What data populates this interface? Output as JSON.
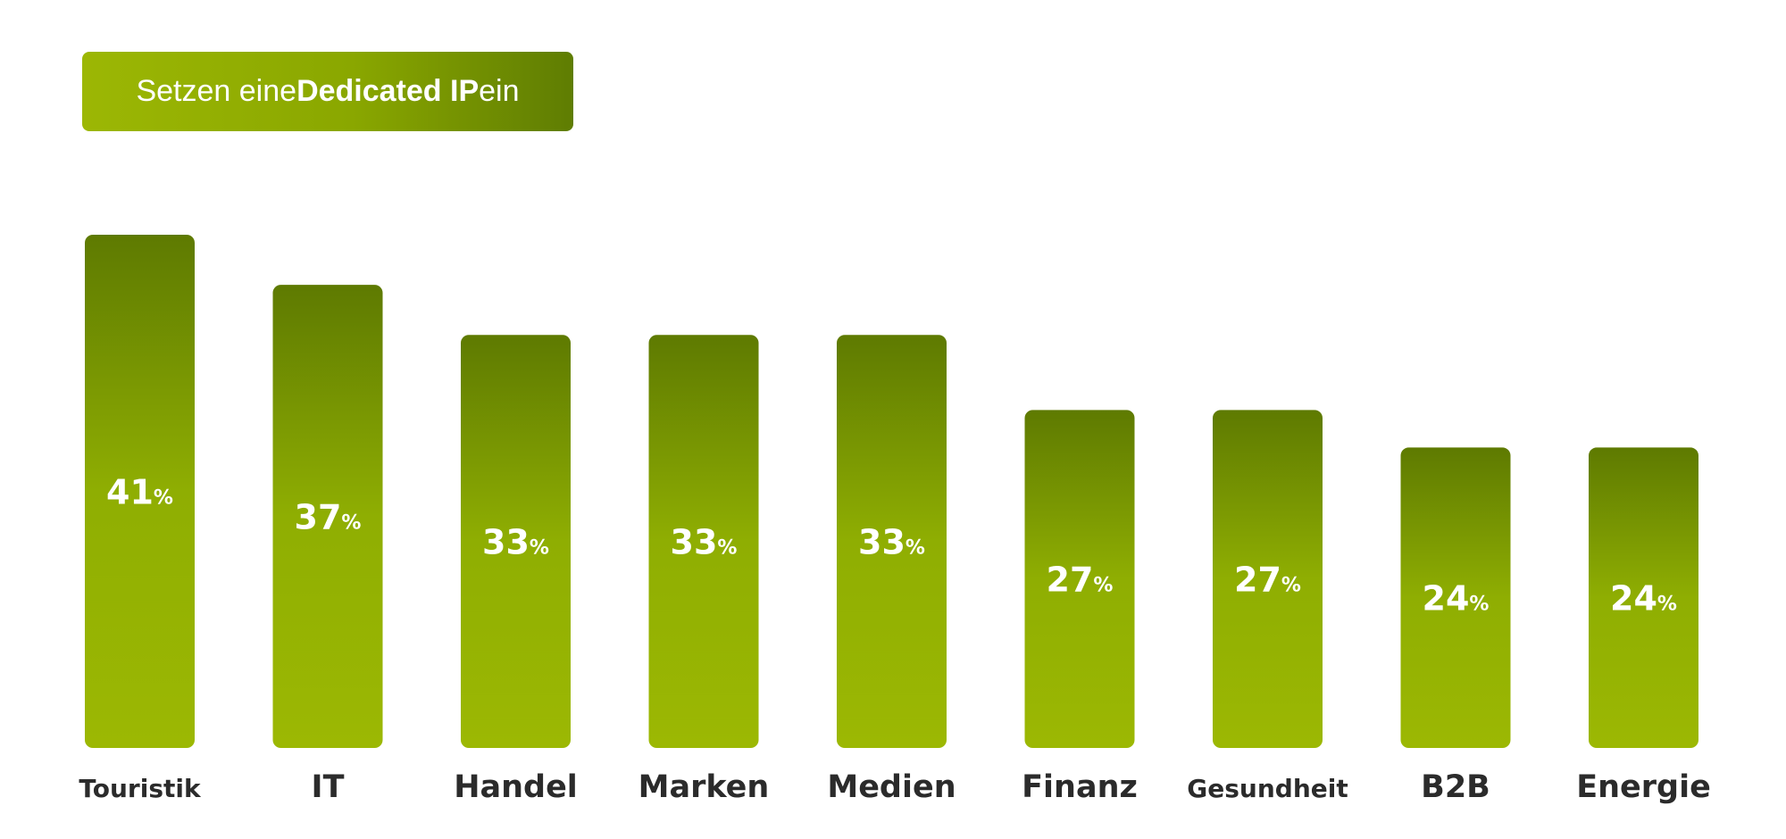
{
  "title": {
    "part1": "Setzen eine ",
    "part2": "Dedicated IP",
    "part3": " ein"
  },
  "colors": {
    "bar_top": "#5e7a01",
    "bar_bottom": "#9cb803",
    "title_left": "#9cb704",
    "title_right": "#5f7d02",
    "label_text": "#ffffff",
    "category_text": "#2b2b2b"
  },
  "chart_data": {
    "type": "bar",
    "title": "Setzen eine Dedicated IP ein",
    "categories": [
      "Touristik",
      "IT",
      "Handel",
      "Marken",
      "Medien",
      "Finanz",
      "Gesundheit",
      "B2B",
      "Energie"
    ],
    "values": [
      41,
      37,
      33,
      33,
      33,
      27,
      27,
      24,
      24
    ],
    "unit": "%",
    "value_labels": [
      "41",
      "37",
      "33",
      "33",
      "33",
      "27",
      "27",
      "24",
      "24"
    ],
    "xlabel": "",
    "ylabel": "",
    "ylim": [
      0,
      41
    ],
    "grid": false,
    "legend": "none"
  }
}
